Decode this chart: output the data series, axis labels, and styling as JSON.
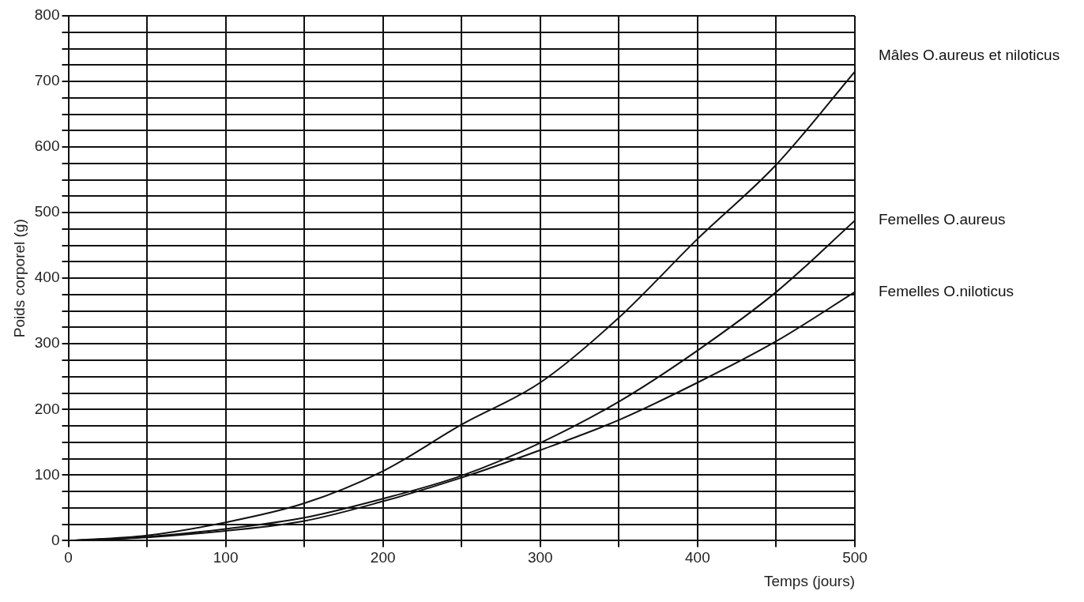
{
  "chart_data": {
    "type": "line",
    "xlabel": "Temps (jours)",
    "ylabel": "Poids corporel (g)",
    "x": [
      0,
      50,
      100,
      150,
      200,
      250,
      300,
      350,
      400,
      450,
      500
    ],
    "series": [
      {
        "name": "Mâles O.aureus et niloticus",
        "color": "#111111",
        "values": [
          0,
          8,
          28,
          57,
          106,
          177,
          241,
          340,
          460,
          573,
          715
        ]
      },
      {
        "name": "Femelles O.aureus",
        "color": "#111111",
        "values": [
          0,
          6,
          18,
          35,
          64,
          99,
          149,
          212,
          290,
          379,
          488
        ]
      },
      {
        "name": "Femelles O.niloticus",
        "color": "#111111",
        "values": [
          0,
          5,
          15,
          30,
          60,
          96,
          138,
          184,
          241,
          304,
          379
        ]
      }
    ],
    "xlim": [
      0,
      500
    ],
    "ylim": [
      0,
      800
    ],
    "xticks": [
      0,
      {
        "value": 50,
        "label": null
      },
      100,
      {
        "value": 150,
        "label": null
      },
      200,
      {
        "value": 250,
        "label": null
      },
      300,
      {
        "value": 350,
        "label": null
      },
      400,
      {
        "value": 450,
        "label": null
      },
      500
    ],
    "yticks": [
      0,
      {
        "value": 25,
        "label": null
      },
      {
        "value": 50,
        "label": null
      },
      {
        "value": 75,
        "label": null
      },
      100,
      {
        "value": 125,
        "label": null
      },
      {
        "value": 150,
        "label": null
      },
      {
        "value": 175,
        "label": null
      },
      200,
      {
        "value": 225,
        "label": null
      },
      {
        "value": 250,
        "label": null
      },
      {
        "value": 275,
        "label": null
      },
      300,
      {
        "value": 325,
        "label": null
      },
      {
        "value": 350,
        "label": null
      },
      {
        "value": 375,
        "label": null
      },
      400,
      {
        "value": 425,
        "label": null
      },
      {
        "value": 450,
        "label": null
      },
      {
        "value": 475,
        "label": null
      },
      500,
      {
        "value": 525,
        "label": null
      },
      {
        "value": 550,
        "label": null
      },
      {
        "value": 575,
        "label": null
      },
      600,
      {
        "value": 625,
        "label": null
      },
      {
        "value": 650,
        "label": null
      },
      {
        "value": 675,
        "label": null
      },
      700,
      {
        "value": 725,
        "label": null
      },
      {
        "value": 750,
        "label": null
      },
      {
        "value": 775,
        "label": null
      },
      800
    ],
    "grid": true,
    "legend": false,
    "marker": "none",
    "line_style": "solid"
  }
}
